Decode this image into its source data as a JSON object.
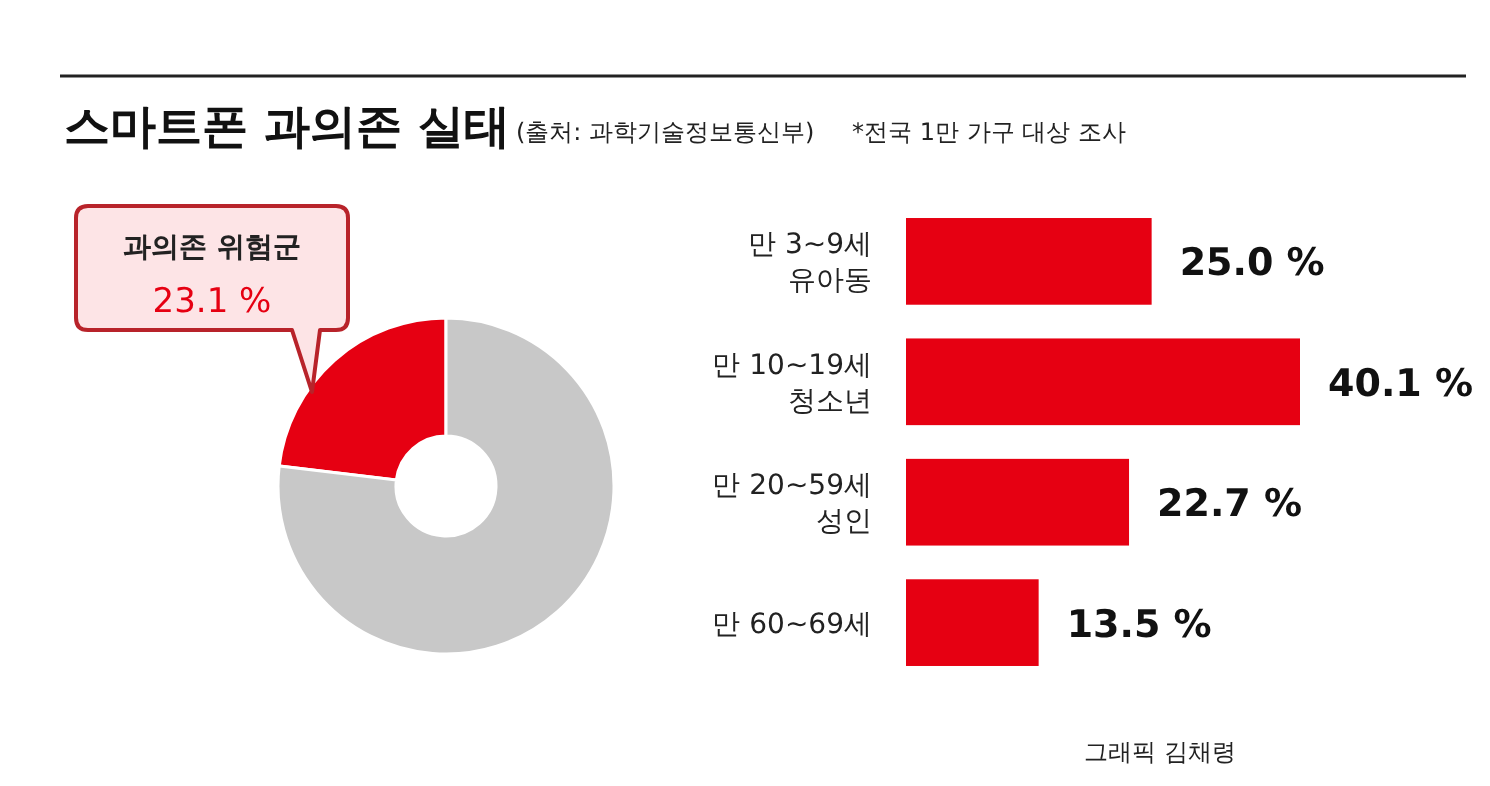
{
  "chart_data": [
    {
      "type": "donut",
      "title": "스마트폰 과의존 실태",
      "subtitle": "(출처: 과학기술정보통신부)",
      "annotations": [
        "*전국 1만 가구 대상 조사",
        "그래픽 김채령"
      ],
      "categories": [
        "과의존 위험군",
        null
      ],
      "values": [
        23.1,
        76.9
      ],
      "colors": [
        "#e60012",
        "#c8c8c8"
      ],
      "value_labels": [
        "23.1 %",
        null
      ],
      "legend": false
    },
    {
      "type": "bar",
      "orientation": "horizontal",
      "categories": [
        "만 3~9세\n유아동",
        "만 10~19세\n청소년",
        "만 20~59세\n성인",
        "만 60~69세"
      ],
      "values": [
        25.0,
        40.1,
        22.7,
        13.5
      ],
      "color": "#e60012",
      "value_labels": [
        "25.0 %",
        "40.1 %",
        "22.7 %",
        "13.5 %"
      ]
    }
  ]
}
